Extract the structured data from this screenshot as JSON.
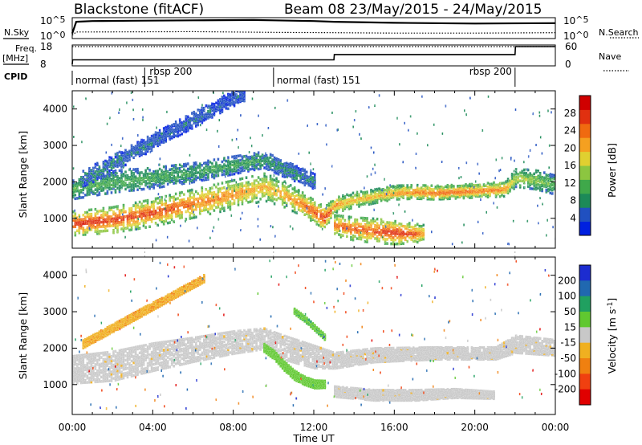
{
  "header": {
    "station": "Blackstone (fitACF)",
    "beam_dates": "Beam 08 23/May/2015 - 24/May/2015"
  },
  "side_labels": {
    "nsky": "N.Sky",
    "freq_line1": "Freq.",
    "freq_line2": "[MHz]",
    "cpid": "CPID",
    "nsearch": "N.Search",
    "nave": "Nave"
  },
  "chart_data": [
    {
      "type": "line",
      "panel": "noise",
      "ylabel": "N.Sky",
      "y2label": "N.Search",
      "ytick_labels": [
        "10^5",
        "10^0"
      ],
      "y2tick_labels": [
        "10^5",
        "10^0"
      ],
      "log_scale": true,
      "series": [
        {
          "name": "N.Sky",
          "x": [
            0,
            0.2,
            1,
            3,
            6,
            9,
            10,
            12,
            13,
            16,
            20,
            24
          ],
          "values": [
            1,
            4.3,
            4.5,
            4.6,
            4.7,
            4.8,
            4.7,
            4.5,
            4.3,
            4.0,
            3.8,
            3.9
          ]
        },
        {
          "name": "N.Search",
          "x": [
            0,
            0.2,
            1,
            6,
            10,
            13,
            16,
            20,
            24
          ],
          "values": [
            0.5,
            1.4,
            1.4,
            1.5,
            1.3,
            1.2,
            1.1,
            1.1,
            1.2
          ]
        }
      ]
    },
    {
      "type": "line",
      "panel": "frequency",
      "ylabel": "Freq. [MHz]",
      "y2label": "Nave",
      "yticks": [
        8,
        18
      ],
      "y2ticks": [
        0,
        60
      ],
      "series": [
        {
          "name": "Freq.",
          "x": [
            0,
            0.02,
            13,
            13.02,
            22,
            22.02,
            24
          ],
          "values": [
            8,
            10.5,
            10.5,
            13.5,
            13.5,
            18,
            18
          ]
        },
        {
          "name": "Nave",
          "x": [
            0,
            24
          ],
          "values": [
            18,
            18
          ]
        }
      ]
    },
    {
      "type": "table",
      "panel": "cpid",
      "ylabel": "CPID",
      "segments": [
        {
          "label": "normal (fast) 151",
          "start": 0,
          "end": 3.6
        },
        {
          "label": "rbsp 200",
          "start": 3.6,
          "end": 10
        },
        {
          "label": "normal (fast) 151",
          "start": 10,
          "end": 22
        },
        {
          "label": "rbsp 200",
          "start": 22,
          "end": 24
        }
      ]
    },
    {
      "type": "heatmap",
      "panel": "power",
      "xlabel": "",
      "ylabel": "Slant Range [km]",
      "xlim": [
        0,
        24
      ],
      "ylim": [
        180,
        4500
      ],
      "xticks": [
        0,
        4,
        8,
        12,
        16,
        20,
        24
      ],
      "yticks": [
        1000,
        2000,
        3000,
        4000
      ],
      "colorbar": {
        "label": "Power [dB]",
        "ticks": [
          4,
          8,
          12,
          16,
          20,
          24,
          28
        ],
        "colors": [
          "#0020e0",
          "#2050c0",
          "#1c8a58",
          "#3fa84a",
          "#8cc640",
          "#e0d030",
          "#f5a020",
          "#f06a10",
          "#e03010",
          "#d00000"
        ]
      },
      "layers": [
        {
          "name": "main echo band",
          "x": [
            0,
            2,
            4,
            6,
            8,
            9.5,
            10.5,
            11.5,
            12.5,
            13,
            14,
            15,
            16,
            17,
            18,
            20,
            21.5,
            22,
            23,
            24
          ],
          "values": [
            850,
            950,
            1150,
            1400,
            1650,
            1850,
            1650,
            1350,
            1000,
            1350,
            1500,
            1600,
            1700,
            1720,
            1700,
            1750,
            1800,
            2100,
            2050,
            1900
          ],
          "width": [
            350,
            380,
            400,
            420,
            420,
            400,
            380,
            340,
            320,
            220,
            220,
            200,
            200,
            200,
            200,
            200,
            220,
            260,
            280,
            280
          ],
          "level": [
            26,
            25,
            24,
            22,
            20,
            18,
            19,
            22,
            26,
            20,
            18,
            18,
            20,
            21,
            22,
            22,
            20,
            14,
            12,
            10
          ]
        },
        {
          "name": "upper echo band",
          "x": [
            0,
            2,
            4,
            6,
            8,
            9.5,
            10.5,
            12
          ],
          "values": [
            1800,
            2000,
            2100,
            2250,
            2450,
            2600,
            2350,
            2000
          ],
          "width": [
            300,
            320,
            300,
            280,
            260,
            240,
            240,
            220
          ],
          "level": [
            10,
            9,
            9,
            8,
            8,
            7,
            6,
            5
          ]
        },
        {
          "name": "near range patch",
          "x": [
            13,
            14,
            15,
            16,
            17,
            17.5
          ],
          "values": [
            800,
            700,
            650,
            600,
            580,
            600
          ],
          "width": [
            300,
            340,
            360,
            340,
            280,
            220
          ],
          "level": [
            22,
            23,
            24,
            26,
            24,
            18
          ]
        },
        {
          "name": "diagonal streak",
          "x": [
            0.5,
            1.5,
            2.5,
            3.5,
            4.5,
            5.5,
            6.5,
            7.5,
            8.5
          ],
          "values": [
            2100,
            2350,
            2650,
            2950,
            3250,
            3550,
            3850,
            4150,
            4400
          ],
          "width": [
            250,
            250,
            240,
            240,
            230,
            230,
            220,
            220,
            200
          ],
          "level": [
            5,
            5,
            5,
            4,
            4,
            4,
            4,
            3,
            3
          ]
        }
      ]
    },
    {
      "type": "heatmap",
      "panel": "velocity",
      "xlabel": "Time UT",
      "ylabel": "Slant Range [km]",
      "xlim": [
        0,
        24
      ],
      "ylim": [
        180,
        4500
      ],
      "xticks": [
        0,
        4,
        8,
        12,
        16,
        20,
        24
      ],
      "xtick_labels": [
        "00:00",
        "04:00",
        "08:00",
        "12:00",
        "16:00",
        "20:00",
        "00:00"
      ],
      "yticks": [
        1000,
        2000,
        3000,
        4000
      ],
      "colorbar": {
        "label": "Velocity [m s^-1]",
        "ticks": [
          200,
          100,
          50,
          15,
          -15,
          -50,
          -100,
          -200
        ],
        "colors": [
          "#1c2cd0",
          "#2068b0",
          "#20a060",
          "#60c830",
          "#c8c8c8",
          "#f0b020",
          "#f08010",
          "#f04010",
          "#e00000"
        ]
      },
      "layers": [
        {
          "name": "grey low-velocity band",
          "x": [
            0,
            2,
            4,
            6,
            8,
            9.5,
            10.5,
            12,
            13,
            15,
            18,
            21,
            22,
            24
          ],
          "values": [
            1400,
            1500,
            1750,
            1950,
            2150,
            2250,
            2000,
            1750,
            1650,
            1800,
            1850,
            1850,
            2100,
            2000
          ],
          "width": [
            800,
            850,
            800,
            700,
            650,
            600,
            700,
            650,
            450,
            400,
            350,
            350,
            500,
            450
          ]
        },
        {
          "name": "grey lower patch",
          "x": [
            13,
            15,
            17,
            19,
            21
          ],
          "values": [
            800,
            700,
            700,
            750,
            700
          ],
          "width": [
            300,
            300,
            300,
            250,
            200
          ]
        },
        {
          "name": "green positive streak",
          "x": [
            9.5,
            10,
            10.5,
            11,
            11.5,
            12,
            12.5
          ],
          "values": [
            2000,
            1800,
            1500,
            1250,
            1100,
            1000,
            1000
          ],
          "width": [
            220,
            240,
            260,
            260,
            240,
            220,
            200
          ],
          "velocity": 30
        },
        {
          "name": "green upper streak",
          "x": [
            11,
            11.5,
            12,
            12.5
          ],
          "values": [
            3000,
            2800,
            2550,
            2300
          ],
          "width": [
            150,
            150,
            150,
            150
          ],
          "velocity": 40
        },
        {
          "name": "orange negative streak",
          "x": [
            0.5,
            1.5,
            2.5,
            3.5,
            4.5,
            5.5,
            6.5
          ],
          "values": [
            2100,
            2400,
            2700,
            3000,
            3300,
            3600,
            3900
          ],
          "width": [
            220,
            220,
            220,
            220,
            200,
            200,
            200
          ],
          "velocity": -40
        }
      ]
    }
  ]
}
